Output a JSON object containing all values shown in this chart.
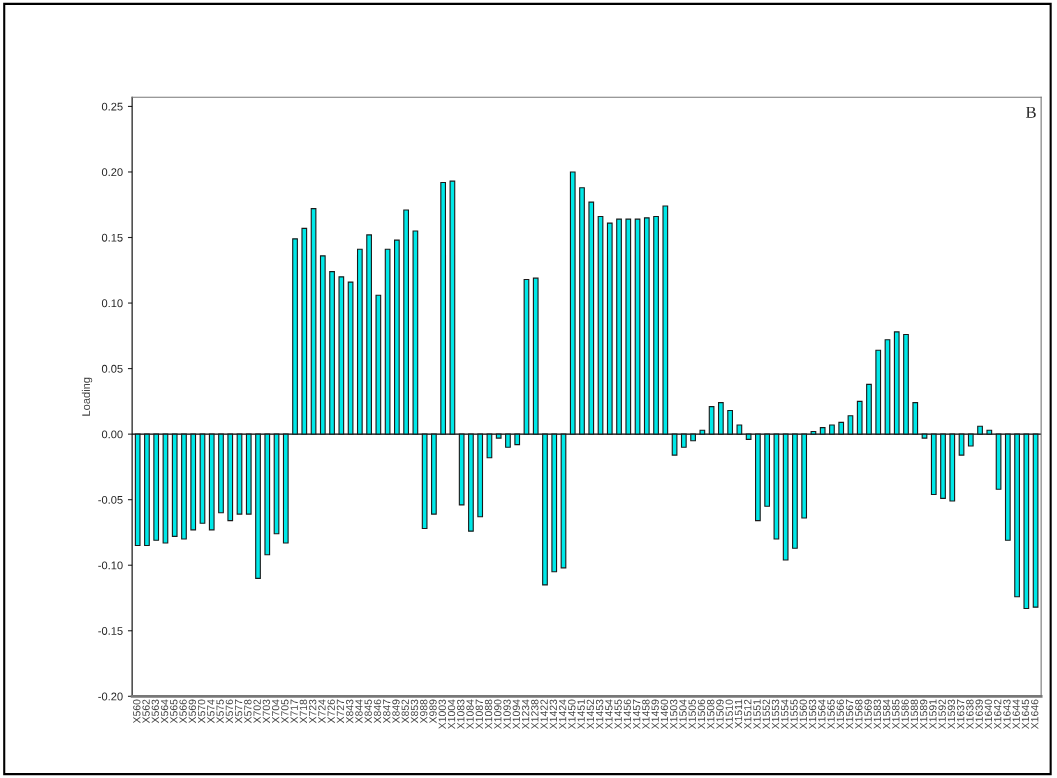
{
  "chart_data": {
    "type": "bar",
    "ylabel": "Loading",
    "annotations": [
      "B"
    ],
    "categories": [
      "X560",
      "X562",
      "X563",
      "X564",
      "X565",
      "X566",
      "X569",
      "X570",
      "X574",
      "X575",
      "X576",
      "X577",
      "X578",
      "X702",
      "X703",
      "X704",
      "X705",
      "X717",
      "X718",
      "X723",
      "X724",
      "X726",
      "X727",
      "X843",
      "X844",
      "X845",
      "X846",
      "X847",
      "X849",
      "X852",
      "X853",
      "X988",
      "X989",
      "X1003",
      "X1004",
      "X1083",
      "X1084",
      "X1087",
      "X1088",
      "X1090",
      "X1093",
      "X1094",
      "X1234",
      "X1238",
      "X1422",
      "X1423",
      "X1424",
      "X1450",
      "X1451",
      "X1452",
      "X1453",
      "X1454",
      "X1455",
      "X1456",
      "X1457",
      "X1458",
      "X1459",
      "X1460",
      "X1503",
      "X1504",
      "X1505",
      "X1506",
      "X1508",
      "X1509",
      "X1510",
      "X1511",
      "X1512",
      "X1551",
      "X1552",
      "X1553",
      "X1554",
      "X1555",
      "X1560",
      "X1563",
      "X1564",
      "X1565",
      "X1566",
      "X1567",
      "X1568",
      "X1569",
      "X1583",
      "X1584",
      "X1585",
      "X1586",
      "X1588",
      "X1589",
      "X1591",
      "X1592",
      "X1593",
      "X1637",
      "X1638",
      "X1639",
      "X1640",
      "X1642",
      "X1643",
      "X1644",
      "X1645",
      "X1646"
    ],
    "values": [
      -0.085,
      -0.085,
      -0.081,
      -0.083,
      -0.078,
      -0.08,
      -0.073,
      -0.068,
      -0.073,
      -0.06,
      -0.066,
      -0.061,
      -0.061,
      -0.11,
      -0.092,
      -0.076,
      -0.083,
      0.149,
      0.157,
      0.172,
      0.136,
      0.124,
      0.12,
      0.116,
      0.141,
      0.152,
      0.106,
      0.141,
      0.148,
      0.171,
      0.155,
      -0.072,
      -0.061,
      0.192,
      0.193,
      -0.054,
      -0.074,
      -0.063,
      -0.018,
      -0.003,
      -0.01,
      -0.008,
      0.118,
      0.119,
      -0.115,
      -0.105,
      -0.102,
      0.2,
      0.188,
      0.177,
      0.166,
      0.161,
      0.164,
      0.164,
      0.164,
      0.165,
      0.166,
      0.174,
      -0.016,
      -0.01,
      -0.005,
      0.003,
      0.021,
      0.024,
      0.018,
      0.007,
      -0.004,
      -0.066,
      -0.055,
      -0.08,
      -0.096,
      -0.087,
      -0.064,
      0.002,
      0.005,
      0.007,
      0.009,
      0.014,
      0.025,
      0.038,
      0.064,
      0.072,
      0.078,
      0.076,
      0.024,
      -0.003,
      -0.046,
      -0.049,
      -0.051,
      -0.016,
      -0.009,
      0.006,
      0.003,
      -0.042,
      -0.081,
      -0.124,
      -0.133,
      -0.132
    ],
    "color": "#00e8e8",
    "ylim": [
      -0.2,
      0.257
    ],
    "yticks": [
      {
        "value": -0.2,
        "label": "-0.20"
      },
      {
        "value": -0.15,
        "label": "-0.15"
      },
      {
        "value": -0.1,
        "label": "-0.10"
      },
      {
        "value": -0.05,
        "label": "-0.05"
      },
      {
        "value": 0,
        "label": "0.00"
      },
      {
        "value": 0.05,
        "label": "0.05"
      },
      {
        "value": 0.1,
        "label": "0.10"
      },
      {
        "value": 0.15,
        "label": "0.15"
      },
      {
        "value": 0.2,
        "label": "0.20"
      },
      {
        "value": 0.25,
        "label": "0.25"
      }
    ],
    "ref_lines": [
      {
        "axis": "y",
        "value": 0,
        "color": "#000000"
      }
    ],
    "grid": false,
    "legend": false
  }
}
